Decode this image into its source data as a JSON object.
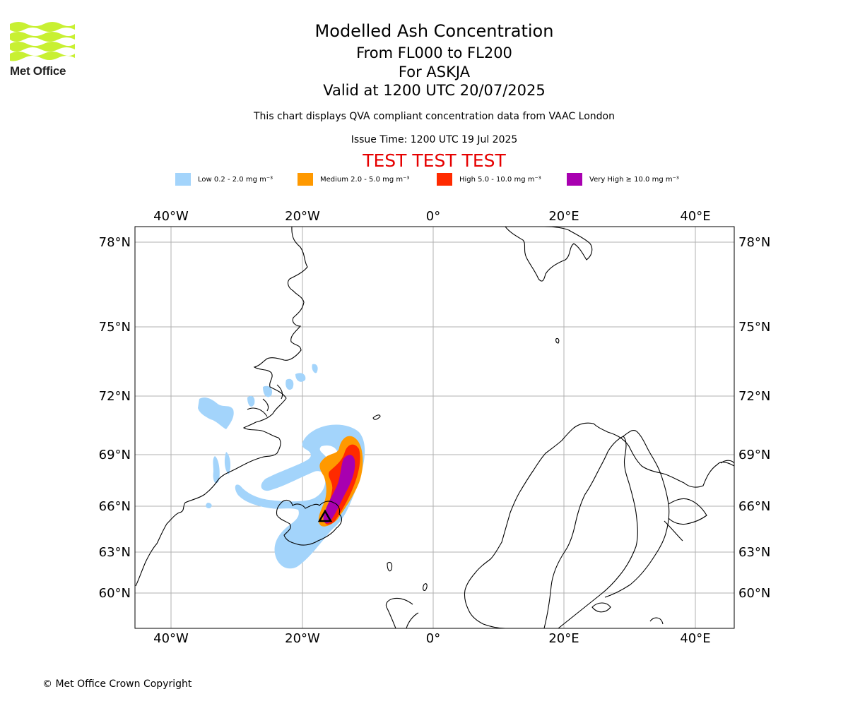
{
  "brand": {
    "name": "Met Office",
    "logo_color": "#c8f032"
  },
  "title": {
    "main": "Modelled Ash Concentration",
    "levels": "From FL000 to FL200",
    "volcano": "For ASKJA",
    "valid": "Valid at 1200 UTC 20/07/2025"
  },
  "subtitle": "This chart displays QVA compliant concentration data from VAAC London",
  "issue_time": "Issue Time: 1200 UTC 19 Jul 2025",
  "test_banner": "TEST TEST TEST",
  "legend": [
    {
      "label": "Low 0.2 - 2.0 mg m⁻³",
      "color": "#a3d4fb"
    },
    {
      "label": "Medium 2.0 - 5.0 mg m⁻³",
      "color": "#ff9900"
    },
    {
      "label": "High 5.0 - 10.0 mg m⁻³",
      "color": "#ff2a00"
    },
    {
      "label": "Very High ≥ 10.0 mg m⁻³",
      "color": "#a800b0"
    }
  ],
  "map": {
    "projection": "stereographic",
    "longitude_labels": [
      "40°W",
      "20°W",
      "0°",
      "20°E",
      "40°E"
    ],
    "latitude_labels": [
      "78°N",
      "75°N",
      "72°N",
      "69°N",
      "66°N",
      "63°N",
      "60°N"
    ],
    "gridlines": true,
    "volcano_marker": "triangle",
    "volcano_location": {
      "lat": 65.03,
      "lon": -16.75
    }
  },
  "copyright": "© Met Office Crown Copyright"
}
